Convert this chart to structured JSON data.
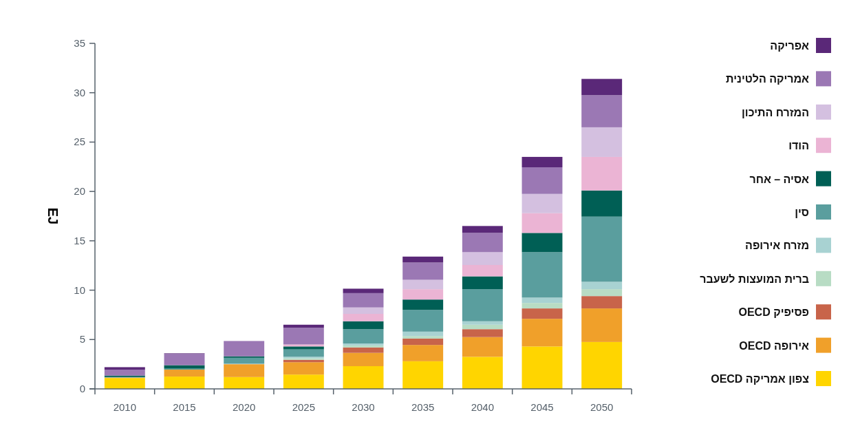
{
  "chart_data": {
    "type": "bar",
    "stacked": true,
    "ylabel": "EJ",
    "categories": [
      "2010",
      "2015",
      "2020",
      "2025",
      "2030",
      "2035",
      "2040",
      "2045",
      "2050"
    ],
    "ylim": [
      0,
      35
    ],
    "yticks": [
      0,
      5,
      10,
      15,
      20,
      25,
      30,
      35
    ],
    "grid": false,
    "legend": "right",
    "series": [
      {
        "name": "צפון אמריקה OECD",
        "color": "#ffd500",
        "values": [
          1.1,
          1.25,
          1.2,
          1.45,
          2.3,
          2.8,
          3.25,
          4.3,
          4.75
        ]
      },
      {
        "name": "אירופה OECD",
        "color": "#f0a02a",
        "values": [
          0.05,
          0.7,
          1.3,
          1.25,
          1.35,
          1.65,
          2.0,
          2.8,
          3.4
        ]
      },
      {
        "name": "פסיפיק OECD",
        "color": "#c8644a",
        "values": [
          0,
          0,
          0,
          0.25,
          0.55,
          0.65,
          0.8,
          1.05,
          1.25
        ]
      },
      {
        "name": "ברית המועצות לשעבר",
        "color": "#b8dcc4",
        "values": [
          0,
          0,
          0,
          0.15,
          0.2,
          0.25,
          0.45,
          0.55,
          0.7
        ]
      },
      {
        "name": "מזרח אירופה",
        "color": "#a8d2d2",
        "values": [
          0,
          0,
          0.05,
          0.15,
          0.2,
          0.45,
          0.35,
          0.55,
          0.75
        ]
      },
      {
        "name": "סין",
        "color": "#5a9e9e",
        "values": [
          0.05,
          0.1,
          0.6,
          0.75,
          1.45,
          2.2,
          3.25,
          4.6,
          6.6
        ]
      },
      {
        "name": "אסיה – אחר",
        "color": "#005f55",
        "values": [
          0.15,
          0.35,
          0.15,
          0.3,
          0.8,
          1.05,
          1.3,
          1.95,
          2.65
        ]
      },
      {
        "name": "הודו",
        "color": "#ebb4d4",
        "values": [
          0,
          0,
          0,
          0.2,
          0.75,
          1.05,
          1.15,
          2.0,
          3.4
        ]
      },
      {
        "name": "המזרח התיכון",
        "color": "#d4c0e0",
        "values": [
          0,
          0,
          0,
          0,
          0.65,
          0.95,
          1.3,
          1.95,
          3.0
        ]
      },
      {
        "name": "אמריקה הלטינית",
        "color": "#9b78b4",
        "values": [
          0.6,
          1.15,
          1.55,
          1.7,
          1.45,
          1.75,
          1.95,
          2.7,
          3.25
        ]
      },
      {
        "name": "אפריקה",
        "color": "#5a2878",
        "values": [
          0.25,
          0.05,
          0,
          0.3,
          0.45,
          0.6,
          0.7,
          1.05,
          1.65
        ]
      }
    ]
  }
}
